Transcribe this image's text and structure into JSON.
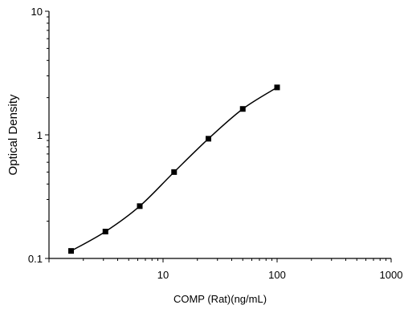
{
  "chart_data": {
    "type": "scatter",
    "title": "",
    "xlabel": "COMP (Rat)(ng/mL)",
    "ylabel": "Optical Density",
    "xscale": "log",
    "yscale": "log",
    "xlim": [
      1,
      1000
    ],
    "ylim": [
      0.1,
      10
    ],
    "xticks": [
      10,
      100,
      1000
    ],
    "xtick_labels": [
      "10",
      "100",
      "1000"
    ],
    "yticks": [
      0.1,
      1,
      10
    ],
    "ytick_labels": [
      "0.1",
      "1",
      "10"
    ],
    "grid": false,
    "legend": "none",
    "fit_curve": "smooth standard curve through points",
    "series": [
      {
        "x": [
          1.5625,
          3.125,
          6.25,
          12.5,
          25,
          50,
          100
        ],
        "y": [
          0.115,
          0.165,
          0.265,
          0.5,
          0.93,
          1.62,
          2.42
        ],
        "marker": "square",
        "color": "#000000"
      }
    ]
  }
}
